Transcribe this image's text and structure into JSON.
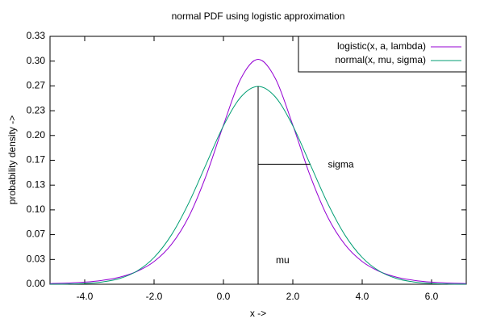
{
  "chart_data": {
    "type": "line",
    "title": "normal PDF using logistic approximation",
    "xlabel": "x ->",
    "ylabel": "probability density ->",
    "x": [
      -5,
      -4.5,
      -4,
      -3.5,
      -3,
      -2.5,
      -2,
      -1.5,
      -1,
      -0.5,
      0,
      0.5,
      1,
      1.5,
      2,
      2.5,
      3,
      3.5,
      4,
      4.5,
      5,
      5.5,
      6,
      6.5,
      7
    ],
    "series": [
      {
        "name": "logistic(x, a, lambda)",
        "color": "#9400d3",
        "values": [
          0.0009,
          0.0016,
          0.0028,
          0.0052,
          0.0094,
          0.0171,
          0.0305,
          0.0535,
          0.0908,
          0.1459,
          0.2139,
          0.2763,
          0.3023,
          0.2763,
          0.2139,
          0.1459,
          0.0908,
          0.0535,
          0.0305,
          0.0171,
          0.0094,
          0.0052,
          0.0028,
          0.0016,
          0.0009
        ]
      },
      {
        "name": "normal(x, mu, sigma)",
        "color": "#009e73",
        "values": [
          0.0001,
          0.0003,
          0.001,
          0.003,
          0.0076,
          0.0175,
          0.036,
          0.0663,
          0.1093,
          0.1613,
          0.213,
          0.2516,
          0.266,
          0.2516,
          0.213,
          0.1613,
          0.1093,
          0.0663,
          0.036,
          0.0175,
          0.0076,
          0.003,
          0.001,
          0.0003,
          0.0001
        ]
      }
    ],
    "annotations": [
      "mu",
      "sigma"
    ],
    "xlim": [
      -5,
      7
    ],
    "xticks": [
      {
        "value": -4,
        "label": "-4.0"
      },
      {
        "value": -2,
        "label": "-2.0"
      },
      {
        "value": 0,
        "label": "0.0"
      },
      {
        "value": 2,
        "label": "2.0"
      },
      {
        "value": 4,
        "label": "4.0"
      },
      {
        "value": 6,
        "label": "6.0"
      }
    ],
    "ylim": [
      0,
      0.3333
    ],
    "yticks": [
      {
        "value": 0,
        "label": "0.00"
      },
      {
        "value": 0.0333,
        "label": "0.03"
      },
      {
        "value": 0.0667,
        "label": "0.07"
      },
      {
        "value": 0.1,
        "label": "0.10"
      },
      {
        "value": 0.1333,
        "label": "0.13"
      },
      {
        "value": 0.1667,
        "label": "0.17"
      },
      {
        "value": 0.2,
        "label": "0.20"
      },
      {
        "value": 0.2333,
        "label": "0.23"
      },
      {
        "value": 0.2667,
        "label": "0.27"
      },
      {
        "value": 0.3,
        "label": "0.30"
      },
      {
        "value": 0.3333,
        "label": "0.33"
      }
    ],
    "legend": "top-right"
  }
}
